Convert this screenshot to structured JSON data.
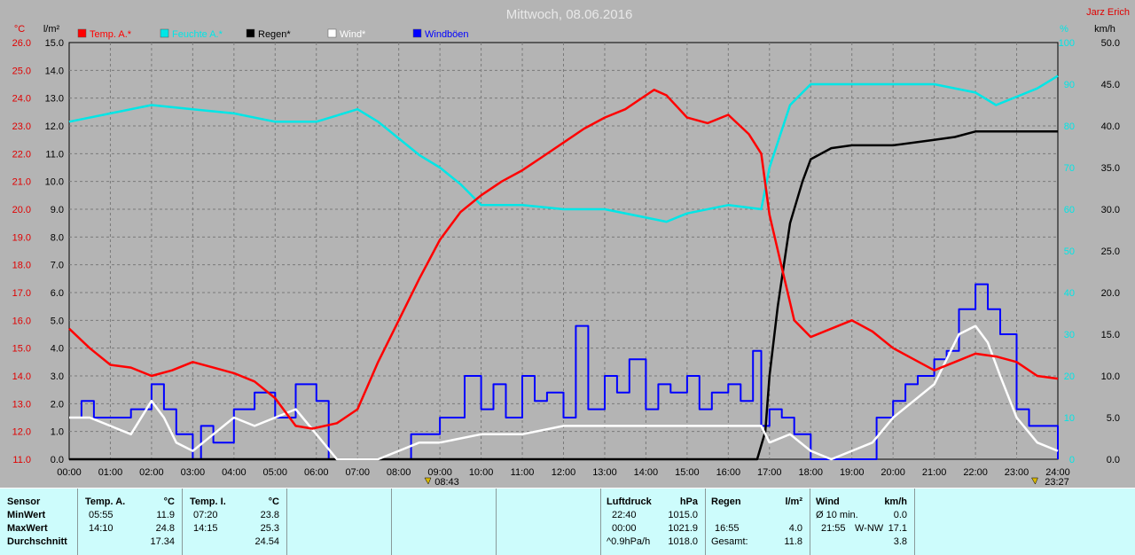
{
  "title": "Mittwoch, 08.06.2016",
  "author": "Jarz Erich",
  "units": {
    "temp": "°C",
    "rain": "l/m²",
    "humidity": "%",
    "wind": "km/h"
  },
  "legend": [
    {
      "label": "Temp. A.*",
      "color": "#ff0000"
    },
    {
      "label": "Feuchte A.*",
      "color": "#00e6e6"
    },
    {
      "label": "Regen*",
      "color": "#000000"
    },
    {
      "label": "Wind*",
      "color": "#ffffff"
    },
    {
      "label": "Windböen",
      "color": "#0000ff"
    }
  ],
  "sunrise": "08:43",
  "sunset": "23:27",
  "chart_data": {
    "type": "line",
    "x_range": [
      "00:00",
      "24:00"
    ],
    "x_ticks": [
      "00:00",
      "01:00",
      "02:00",
      "03:00",
      "04:00",
      "05:00",
      "06:00",
      "07:00",
      "08:00",
      "09:00",
      "10:00",
      "11:00",
      "12:00",
      "13:00",
      "14:00",
      "15:00",
      "16:00",
      "17:00",
      "18:00",
      "19:00",
      "20:00",
      "21:00",
      "22:00",
      "23:00",
      "24:00"
    ],
    "axes": {
      "temp": {
        "range": [
          11.0,
          26.0
        ],
        "ticks": [
          "11.0",
          "12.0",
          "13.0",
          "14.0",
          "15.0",
          "16.0",
          "17.0",
          "18.0",
          "19.0",
          "20.0",
          "21.0",
          "22.0",
          "23.0",
          "24.0",
          "25.0",
          "26.0"
        ]
      },
      "rain": {
        "range": [
          0.0,
          15.0
        ],
        "ticks": [
          "0.0",
          "1.0",
          "2.0",
          "3.0",
          "4.0",
          "5.0",
          "6.0",
          "7.0",
          "8.0",
          "9.0",
          "10.0",
          "11.0",
          "12.0",
          "13.0",
          "14.0",
          "15.0"
        ]
      },
      "humidity": {
        "range": [
          0,
          100
        ],
        "ticks": [
          "0",
          "10",
          "20",
          "30",
          "40",
          "50",
          "60",
          "70",
          "80",
          "90",
          "100"
        ]
      },
      "wind": {
        "range": [
          0.0,
          50.0
        ],
        "ticks": [
          "0.0",
          "5.0",
          "10.0",
          "15.0",
          "20.0",
          "25.0",
          "30.0",
          "35.0",
          "40.0",
          "45.0",
          "50.0"
        ]
      }
    },
    "series": [
      {
        "name": "Temp. A.*",
        "axis": "temp",
        "x": [
          0,
          0.5,
          1,
          1.5,
          2,
          2.5,
          3,
          3.5,
          4,
          4.5,
          5,
          5.5,
          5.9,
          6.5,
          7,
          7.5,
          8,
          8.5,
          9,
          9.5,
          10,
          10.5,
          11,
          11.5,
          12,
          12.5,
          13,
          13.5,
          14,
          14.2,
          14.5,
          15,
          15.5,
          16,
          16.5,
          16.8,
          17,
          17.3,
          17.6,
          18,
          18.5,
          19,
          19.5,
          20,
          20.5,
          21,
          21.5,
          22,
          22.5,
          23,
          23.5,
          24
        ],
        "values": [
          15.7,
          15.0,
          14.4,
          14.3,
          14.0,
          14.2,
          14.5,
          14.3,
          14.1,
          13.8,
          13.2,
          12.2,
          12.1,
          12.3,
          12.8,
          14.5,
          16.0,
          17.5,
          18.9,
          19.9,
          20.5,
          21.0,
          21.4,
          21.9,
          22.4,
          22.9,
          23.3,
          23.6,
          24.1,
          24.3,
          24.1,
          23.3,
          23.1,
          23.4,
          22.7,
          22.0,
          19.8,
          17.9,
          16.0,
          15.4,
          15.7,
          16.0,
          15.6,
          15.0,
          14.6,
          14.2,
          14.5,
          14.8,
          14.7,
          14.5,
          14.0,
          13.9
        ]
      },
      {
        "name": "Feuchte A.*",
        "axis": "humidity",
        "x": [
          0,
          1,
          2,
          3,
          4,
          5,
          6,
          7,
          7.5,
          8,
          8.5,
          9,
          9.5,
          10,
          11,
          12,
          13,
          14,
          14.5,
          15,
          16,
          16.8,
          17,
          17.5,
          18,
          19,
          20,
          21,
          22,
          22.5,
          23,
          23.5,
          24
        ],
        "values": [
          81,
          83,
          85,
          84,
          83,
          81,
          81,
          84,
          81,
          77,
          73,
          70,
          66,
          61,
          61,
          60,
          60,
          58,
          57,
          59,
          61,
          60,
          70,
          85,
          90,
          90,
          90,
          90,
          88,
          85,
          87,
          89,
          92
        ]
      },
      {
        "name": "Regen*",
        "axis": "rain",
        "x": [
          0,
          16.7,
          16.9,
          17,
          17.2,
          17.5,
          17.8,
          18,
          18.5,
          19,
          20,
          21,
          21.5,
          22,
          23,
          24
        ],
        "values": [
          0,
          0,
          1.0,
          3.0,
          5.5,
          8.5,
          10.0,
          10.8,
          11.2,
          11.3,
          11.3,
          11.5,
          11.6,
          11.8,
          11.8,
          11.8
        ]
      },
      {
        "name": "Wind*",
        "axis": "wind",
        "x": [
          0,
          0.5,
          1,
          1.5,
          2,
          2.3,
          2.6,
          3,
          3.5,
          4,
          4.5,
          5,
          5.5,
          6,
          6.5,
          7,
          7.5,
          8,
          8.5,
          9,
          10,
          11,
          12,
          13,
          14,
          15,
          16,
          16.8,
          17,
          17.5,
          18,
          18.5,
          19,
          19.5,
          20,
          20.5,
          21,
          21.3,
          21.6,
          22,
          22.3,
          22.6,
          23,
          23.5,
          24
        ],
        "values": [
          5,
          5,
          4,
          3,
          7,
          5,
          2,
          1,
          3,
          5,
          4,
          5,
          6,
          3,
          0,
          0,
          0,
          1,
          2,
          2,
          3,
          3,
          4,
          4,
          4,
          4,
          4,
          4,
          2,
          3,
          1,
          0,
          1,
          2,
          5,
          7,
          9,
          12,
          15,
          16,
          14,
          10,
          5,
          2,
          1
        ]
      },
      {
        "name": "Windböen",
        "axis": "wind",
        "x": [
          0,
          0.3,
          0.6,
          1,
          1.5,
          2,
          2.3,
          2.6,
          3,
          3.2,
          3.5,
          4,
          4.5,
          5,
          5.5,
          6,
          6.3,
          7,
          7.5,
          8,
          8.3,
          9,
          9.3,
          9.6,
          10,
          10.3,
          10.6,
          11,
          11.3,
          11.6,
          12,
          12.3,
          12.6,
          13,
          13.3,
          13.6,
          14,
          14.3,
          14.6,
          15,
          15.3,
          15.6,
          16,
          16.3,
          16.6,
          16.8,
          17,
          17.3,
          17.6,
          18,
          18.3,
          18.6,
          19,
          19.3,
          19.6,
          20,
          20.3,
          20.6,
          21,
          21.3,
          21.6,
          22,
          22.3,
          22.6,
          23,
          23.3,
          23.6,
          24
        ],
        "values": [
          5,
          7,
          5,
          5,
          6,
          9,
          6,
          3,
          0,
          4,
          2,
          6,
          8,
          5,
          9,
          7,
          0,
          0,
          0,
          0,
          3,
          5,
          5,
          10,
          6,
          9,
          5,
          10,
          7,
          8,
          5,
          16,
          6,
          10,
          8,
          12,
          6,
          9,
          8,
          10,
          6,
          8,
          9,
          7,
          13,
          4,
          6,
          5,
          3,
          0,
          0,
          0,
          0,
          0,
          5,
          7,
          9,
          10,
          12,
          13,
          18,
          21,
          18,
          15,
          6,
          4,
          4,
          0
        ]
      }
    ]
  },
  "summary": {
    "sensor": {
      "header": "Sensor",
      "rows": [
        "MinWert",
        "MaxWert",
        "Durchschnitt"
      ]
    },
    "temp_a": {
      "header": "Temp. A.",
      "unit": "°C",
      "rows": [
        [
          "05:55",
          "11.9"
        ],
        [
          "14:10",
          "24.8"
        ],
        [
          "",
          "17.34"
        ]
      ]
    },
    "temp_i": {
      "header": "Temp. I.",
      "unit": "°C",
      "rows": [
        [
          "07:20",
          "23.8"
        ],
        [
          "14:15",
          "25.3"
        ],
        [
          "",
          "24.54"
        ]
      ]
    },
    "pressure": {
      "header": "Luftdruck",
      "unit": "hPa",
      "rows": [
        [
          "22:40",
          "1015.0"
        ],
        [
          "00:00",
          "1021.9"
        ],
        [
          "^0.9hPa/h",
          "1018.0"
        ]
      ]
    },
    "rain": {
      "header": "Regen",
      "unit": "l/m²",
      "rows": [
        [
          "",
          ""
        ],
        [
          "16:55",
          "4.0"
        ],
        [
          "Gesamt:",
          "11.8"
        ]
      ]
    },
    "wind": {
      "header": "Wind",
      "unit": "km/h",
      "rows": [
        [
          "Ø 10 min.",
          "",
          "0.0"
        ],
        [
          "21:55",
          "W-NW",
          "17.1"
        ],
        [
          "",
          "",
          "3.8"
        ]
      ]
    }
  }
}
